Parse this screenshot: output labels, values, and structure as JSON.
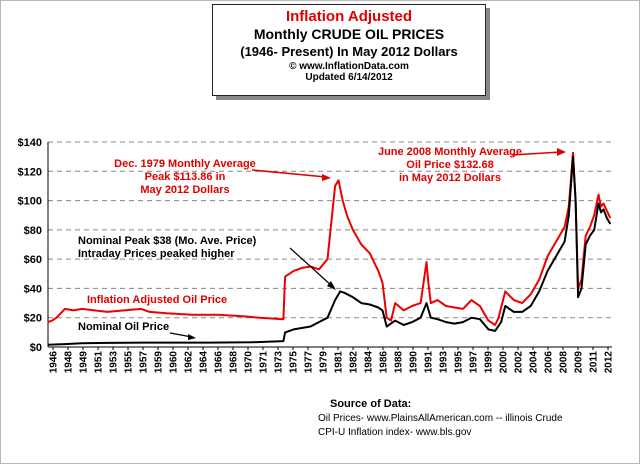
{
  "header": {
    "title_line1": "Inflation Adjusted",
    "title_line2": "Monthly CRUDE OIL PRICES",
    "title_line3": "(1946- Present) In May 2012 Dollars",
    "copyright": "© www.InflationData.com",
    "updated": "Updated 6/14/2012",
    "title_color": "#e00000"
  },
  "chart_data": {
    "type": "line",
    "ylim": [
      0,
      140
    ],
    "y_ticks": [
      "$0",
      "$20",
      "$40",
      "$60",
      "$80",
      "$100",
      "$120",
      "$140"
    ],
    "x_ticks": [
      "1946",
      "1948",
      "1949",
      "1951",
      "1953",
      "1955",
      "1957",
      "1959",
      "1960",
      "1962",
      "1964",
      "1966",
      "1968",
      "1970",
      "1971",
      "1973",
      "1975",
      "1977",
      "1979",
      "1981",
      "1982",
      "1984",
      "1986",
      "1988",
      "1990",
      "1991",
      "1993",
      "1995",
      "1997",
      "1999",
      "2000",
      "2002",
      "2004",
      "2006",
      "2008",
      "2009",
      "2011",
      "2012"
    ],
    "grid": "dashed horizontal",
    "series": [
      {
        "name": "Inflation Adjusted Oil Price",
        "color": "#ee0000",
        "x": [
          1946,
          1946.5,
          1947,
          1948,
          1949,
          1950,
          1953,
          1955,
          1957,
          1958,
          1960,
          1963,
          1966,
          1969,
          1971,
          1973.8,
          1974,
          1975,
          1976,
          1977,
          1978,
          1979,
          1979.9,
          1980.3,
          1980.8,
          1981.3,
          1982,
          1983,
          1984,
          1985,
          1985.5,
          1986,
          1986.5,
          1987,
          1988,
          1989,
          1990,
          1990.7,
          1990.9,
          1991.2,
          1992,
          1993,
          1994,
          1995,
          1996,
          1997,
          1998,
          1998.8,
          1999.2,
          2000,
          2001,
          2002,
          2003,
          2004,
          2005,
          2006,
          2007,
          2007.5,
          2008,
          2008.3,
          2008.6,
          2009,
          2009.5,
          2010,
          2010.5,
          2011,
          2011.3,
          2011.6,
          2012,
          2012.4
        ],
        "y": [
          17,
          18,
          20,
          26,
          25,
          26,
          24,
          25,
          26,
          24,
          23,
          22,
          22,
          21,
          20,
          19,
          48,
          52,
          54,
          55,
          53,
          60,
          110,
          113.86,
          100,
          90,
          80,
          70,
          64,
          52,
          44,
          20,
          18,
          30,
          25,
          28,
          30,
          58,
          45,
          30,
          32,
          28,
          27,
          26,
          32,
          28,
          18,
          15,
          20,
          38,
          32,
          30,
          36,
          46,
          62,
          72,
          82,
          96,
          132.68,
          100,
          40,
          46,
          76,
          82,
          90,
          104,
          96,
          98,
          93,
          88
        ]
      },
      {
        "name": "Nominal Oil Price",
        "color": "#000000",
        "x": [
          1946,
          1948,
          1950,
          1953,
          1957,
          1960,
          1965,
          1970,
          1973.8,
          1974,
          1975,
          1977,
          1979,
          1979.9,
          1980.5,
          1981,
          1982,
          1983,
          1984,
          1985,
          1985.5,
          1986,
          1987,
          1988,
          1989,
          1990,
          1990.7,
          1991.2,
          1992,
          1993,
          1994,
          1995,
          1996,
          1997,
          1998,
          1998.8,
          1999.5,
          2000,
          2001,
          2002,
          2003,
          2004,
          2005,
          2006,
          2007,
          2007.5,
          2008,
          2008.3,
          2008.6,
          2009,
          2009.5,
          2010,
          2010.5,
          2011,
          2011.3,
          2011.6,
          2012,
          2012.4
        ],
        "y": [
          1.5,
          2,
          2.5,
          2.8,
          3,
          3,
          3,
          3.2,
          4,
          10,
          12,
          14,
          20,
          32,
          38,
          37,
          34,
          30,
          29,
          27,
          25,
          14,
          18,
          15,
          17,
          20,
          30,
          20,
          19,
          17,
          16,
          17,
          20,
          19,
          12,
          11,
          17,
          28,
          24,
          24,
          28,
          38,
          52,
          62,
          72,
          90,
          130,
          100,
          34,
          40,
          70,
          76,
          80,
          98,
          92,
          94,
          88,
          84
        ]
      }
    ],
    "annotations": {
      "peak_1979": "Dec. 1979 Monthly Average Peak $113.86 in May 2012 Dollars",
      "nominal_peak": "Nominal Peak $38 (Mo. Ave. Price) Intraday Prices peaked higher",
      "peak_2008": "June 2008 Monthly Average Oil Price $132.68 in May 2012 Dollars"
    }
  },
  "labels": {
    "peak1979_l1": "Dec. 1979 Monthly Average",
    "peak1979_l2": "Peak $113.86 in",
    "peak1979_l3": "May 2012 Dollars",
    "nominal_l1": "Nominal Peak $38 (Mo. Ave. Price)",
    "nominal_l2": "Intraday Prices peaked higher",
    "peak2008_l1": "June 2008 Monthly Average",
    "peak2008_l2": "Oil  Price $132.68",
    "peak2008_l3": "in May 2012 Dollars",
    "series_adjusted": "Inflation Adjusted Oil Price",
    "series_nominal": "Nominal Oil Price"
  },
  "source": {
    "heading": "Source of Data:",
    "line1": "Oil Prices- www.PlainsAllAmerican.com  -- illinois Crude",
    "line2": "CPI-U Inflation index-     www.bls.gov"
  }
}
